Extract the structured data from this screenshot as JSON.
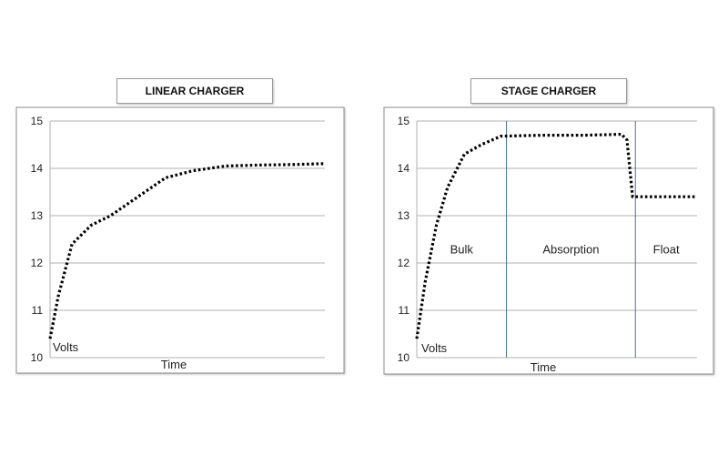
{
  "chart_data": [
    {
      "type": "line",
      "title": "LINEAR CHARGER",
      "xlabel": "Time",
      "ylabel": "Volts",
      "ylim": [
        10,
        15
      ],
      "yticks": [
        "10",
        "11",
        "12",
        "13",
        "14",
        "15"
      ],
      "grid": "horizontal",
      "x": [
        0,
        0.03,
        0.08,
        0.15,
        0.22,
        0.32,
        0.42,
        0.52,
        0.64,
        0.76,
        0.88,
        1.0
      ],
      "values": [
        10.4,
        11.3,
        12.4,
        12.8,
        13.0,
        13.4,
        13.8,
        13.95,
        14.05,
        14.07,
        14.08,
        14.1
      ],
      "color": "#000000"
    },
    {
      "type": "line",
      "title": "STAGE CHARGER",
      "xlabel": "Time",
      "ylabel": "Volts",
      "ylim": [
        10,
        15
      ],
      "yticks": [
        "10",
        "11",
        "12",
        "13",
        "14",
        "15"
      ],
      "grid": "horizontal",
      "x": [
        0,
        0.03,
        0.07,
        0.11,
        0.17,
        0.23,
        0.3,
        0.45,
        0.6,
        0.73,
        0.75,
        0.77,
        1.0
      ],
      "values": [
        10.4,
        11.6,
        12.8,
        13.6,
        14.3,
        14.5,
        14.68,
        14.7,
        14.7,
        14.72,
        14.6,
        13.4,
        13.4
      ],
      "regions": [
        "Bulk",
        "Absorption",
        "Float"
      ],
      "region_boundaries": [
        0.32,
        0.78
      ],
      "color": "#000000",
      "divider_color": "#4a6fa5"
    }
  ]
}
